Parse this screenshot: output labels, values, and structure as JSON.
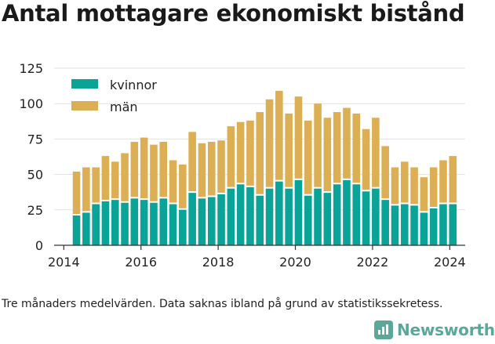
{
  "title": "Antal mottagare ekonomiskt bistånd",
  "footnote": "Tre månaders medelvärden. Data saknas ibland på grund av statistikssekretess.",
  "brand": {
    "name": "Newsworthy",
    "icon": "newsworthy-logo-icon"
  },
  "colors": {
    "kvinnor": "#0aa398",
    "man": "#dcaf55",
    "grid": "#e2e2e2",
    "axis": "#333333"
  },
  "chart_data": {
    "type": "bar",
    "stacked": true,
    "title": "Antal mottagare ekonomiskt bistånd",
    "xlabel": "",
    "ylabel": "",
    "ylim": [
      0,
      125
    ],
    "yticks": [
      0,
      25,
      50,
      75,
      100,
      125
    ],
    "xlim": [
      2013.75,
      2024.4
    ],
    "xticks": [
      2014,
      2016,
      2018,
      2020,
      2022,
      2024
    ],
    "legend": "top-left",
    "grid": true,
    "x": [
      2014.33,
      2014.58,
      2014.83,
      2015.08,
      2015.33,
      2015.58,
      2015.83,
      2016.08,
      2016.33,
      2016.58,
      2016.83,
      2017.08,
      2017.33,
      2017.58,
      2017.83,
      2018.08,
      2018.33,
      2018.58,
      2018.83,
      2019.08,
      2019.33,
      2019.58,
      2019.83,
      2020.08,
      2020.33,
      2020.58,
      2020.83,
      2021.08,
      2021.33,
      2021.58,
      2021.83,
      2022.08,
      2022.33,
      2022.58,
      2022.83,
      2023.08,
      2023.33,
      2023.58,
      2023.83,
      2024.08
    ],
    "series": [
      {
        "name": "kvinnor",
        "values": [
          21,
          23,
          29,
          31,
          32,
          30,
          33,
          32,
          30,
          33,
          29,
          25,
          37,
          33,
          34,
          36,
          40,
          43,
          41,
          35,
          40,
          45,
          40,
          46,
          35,
          40,
          37,
          43,
          46,
          43,
          38,
          40,
          32,
          28,
          29,
          28,
          23,
          26,
          29,
          29
        ]
      },
      {
        "name": "män",
        "values": [
          31,
          32,
          26,
          32,
          27,
          35,
          40,
          44,
          41,
          40,
          31,
          32,
          43,
          39,
          39,
          38,
          44,
          44,
          47,
          59,
          63,
          64,
          53,
          59,
          53,
          60,
          53,
          51,
          51,
          50,
          44,
          50,
          38,
          27,
          30,
          27,
          25,
          29,
          31,
          34
        ]
      }
    ]
  }
}
